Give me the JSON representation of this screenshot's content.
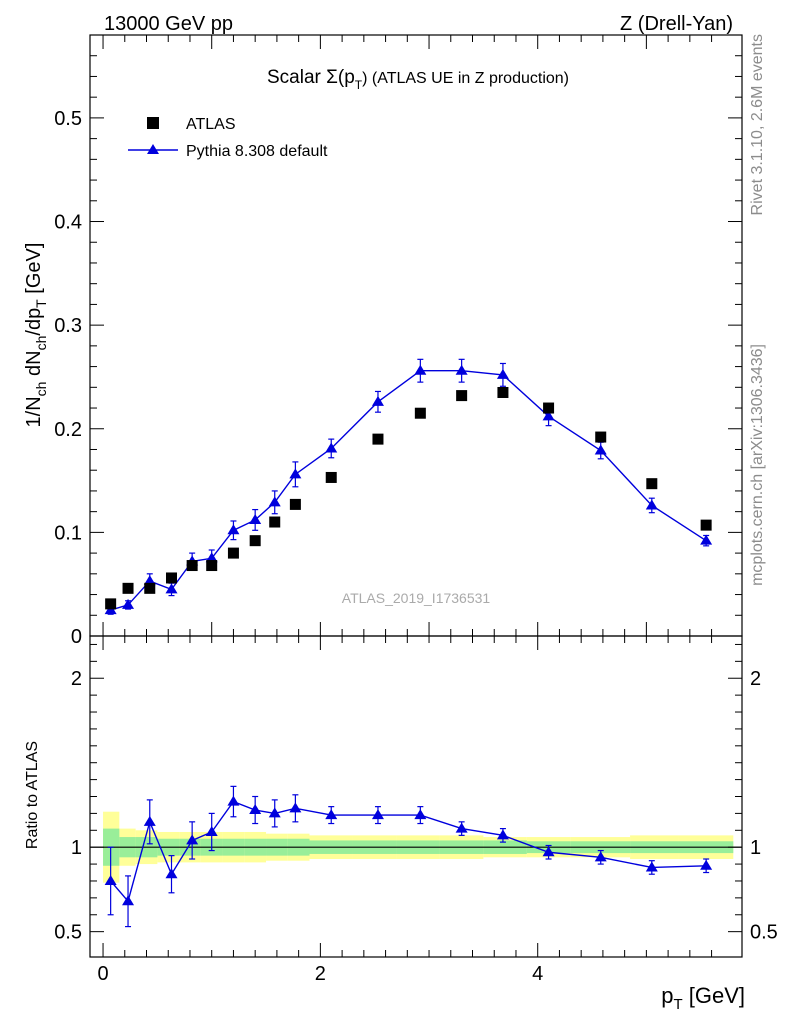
{
  "header": {
    "left": "13000 GeV pp",
    "right": "Z (Drell-Yan)"
  },
  "side_text": {
    "rivet": "Rivet 3.1.10,  2.6M events",
    "mcplots": "mcplots.cern.ch [arXiv:1306.3436]"
  },
  "colors": {
    "data": "#000000",
    "mc": "#0000dd",
    "band_inner": "#99ee99",
    "band_outer": "#ffff99"
  },
  "chart_data": [
    {
      "type": "scatter",
      "title": "Scalar Σ(pT) (ATLAS UE in Z production)",
      "title_main": "Scalar Σ(p",
      "title_sub": "T",
      "title_tail": ") (ATLAS UE in Z production)",
      "ylabel": "1/N_ch dN_ch/dp_T [GeV]",
      "ylim": [
        0,
        0.58
      ],
      "xlim": [
        -0.12,
        5.88
      ],
      "yticks": [
        0,
        0.1,
        0.2,
        0.3,
        0.4,
        0.5
      ],
      "ytick_labels": [
        "0",
        "0.1",
        "0.2",
        "0.3",
        "0.4",
        "0.5"
      ],
      "watermark": "ATLAS_2019_I1736531",
      "legend": [
        {
          "label": "ATLAS",
          "marker": "square"
        },
        {
          "label": "Pythia 8.308 default",
          "marker": "triangle-line"
        }
      ],
      "x": [
        0.07,
        0.23,
        0.43,
        0.63,
        0.82,
        1.0,
        1.2,
        1.4,
        1.58,
        1.77,
        2.1,
        2.53,
        2.92,
        3.3,
        3.68,
        4.1,
        4.58,
        5.05,
        5.55
      ],
      "series": [
        {
          "name": "ATLAS",
          "values": [
            0.031,
            0.046,
            0.046,
            0.056,
            0.068,
            0.068,
            0.08,
            0.092,
            0.11,
            0.127,
            0.153,
            0.19,
            0.215,
            0.232,
            0.235,
            0.22,
            0.192,
            0.147,
            0.107
          ]
        },
        {
          "name": "Pythia 8.308 default",
          "values": [
            0.025,
            0.03,
            0.053,
            0.045,
            0.072,
            0.075,
            0.102,
            0.112,
            0.129,
            0.156,
            0.181,
            0.226,
            0.256,
            0.256,
            0.252,
            0.212,
            0.179,
            0.126,
            0.092
          ],
          "errors": [
            0.004,
            0.004,
            0.007,
            0.006,
            0.008,
            0.008,
            0.009,
            0.01,
            0.011,
            0.012,
            0.009,
            0.01,
            0.011,
            0.011,
            0.011,
            0.009,
            0.008,
            0.007,
            0.005
          ]
        }
      ]
    },
    {
      "type": "line",
      "ylabel": "Ratio to ATLAS",
      "xlabel": "p_T [GeV]",
      "xlabel_main": "p",
      "xlabel_sub": "T",
      "xlabel_tail": " [GeV]",
      "ylim": [
        0.35,
        2.25
      ],
      "xlim": [
        -0.12,
        5.88
      ],
      "yticks": [
        0.5,
        1,
        2
      ],
      "ytick_labels": [
        "0.5",
        "1",
        "2"
      ],
      "xticks": [
        0,
        2,
        4
      ],
      "xtick_labels": [
        "0",
        "2",
        "4"
      ],
      "x": [
        0.07,
        0.23,
        0.43,
        0.63,
        0.82,
        1.0,
        1.2,
        1.4,
        1.58,
        1.77,
        2.1,
        2.53,
        2.92,
        3.3,
        3.68,
        4.1,
        4.58,
        5.05,
        5.55
      ],
      "series": [
        {
          "name": "Pythia 8.308 default / ATLAS",
          "values": [
            0.8,
            0.68,
            1.15,
            0.84,
            1.04,
            1.09,
            1.27,
            1.22,
            1.2,
            1.23,
            1.19,
            1.19,
            1.19,
            1.11,
            1.07,
            0.97,
            0.94,
            0.88,
            0.89
          ],
          "errors": [
            0.2,
            0.15,
            0.13,
            0.11,
            0.11,
            0.11,
            0.09,
            0.08,
            0.08,
            0.08,
            0.05,
            0.05,
            0.05,
            0.04,
            0.04,
            0.04,
            0.04,
            0.04,
            0.04
          ]
        }
      ],
      "band": {
        "edges": [
          0.0,
          0.15,
          0.3,
          0.5,
          0.7,
          0.9,
          1.1,
          1.3,
          1.5,
          1.7,
          1.9,
          2.3,
          2.7,
          3.1,
          3.5,
          3.9,
          4.3,
          4.85,
          5.3,
          5.8
        ],
        "inner": [
          0.11,
          0.06,
          0.06,
          0.05,
          0.05,
          0.05,
          0.05,
          0.05,
          0.05,
          0.05,
          0.04,
          0.04,
          0.04,
          0.04,
          0.04,
          0.035,
          0.035,
          0.035,
          0.035
        ],
        "outer": [
          0.21,
          0.11,
          0.1,
          0.09,
          0.09,
          0.09,
          0.09,
          0.09,
          0.08,
          0.08,
          0.07,
          0.07,
          0.07,
          0.07,
          0.06,
          0.06,
          0.06,
          0.07,
          0.07
        ]
      }
    }
  ]
}
